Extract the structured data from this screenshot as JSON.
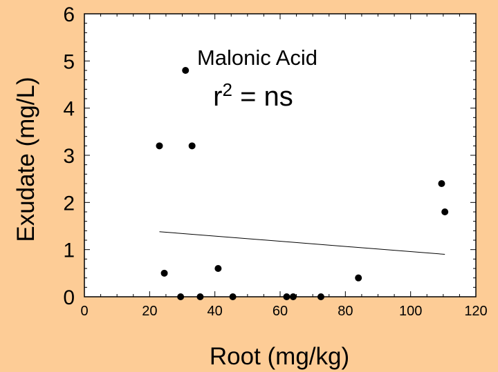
{
  "colors": {
    "background": "#FDCC96",
    "plot_background": "#FFFFFF",
    "points": "#000000",
    "line": "#000000"
  },
  "chart_data": {
    "type": "scatter",
    "title": "",
    "xlabel": "Root (mg/kg)",
    "ylabel": "Exudate (mg/L)",
    "xlim": [
      0,
      120
    ],
    "ylim": [
      0,
      6
    ],
    "x_ticks": [
      0,
      20,
      40,
      60,
      80,
      100,
      120
    ],
    "y_ticks": [
      0,
      1,
      2,
      3,
      4,
      5,
      6
    ],
    "grid": false,
    "legend": "none",
    "annotations": {
      "compound": "Malonic Acid",
      "r2_label": "r",
      "r2_sup": "2",
      "r2_value": " = ns"
    },
    "series": [
      {
        "points": [
          {
            "x": 23,
            "y": 3.2
          },
          {
            "x": 24.5,
            "y": 0.5
          },
          {
            "x": 29.5,
            "y": 0
          },
          {
            "x": 31,
            "y": 4.8
          },
          {
            "x": 33,
            "y": 3.2
          },
          {
            "x": 35.5,
            "y": 0
          },
          {
            "x": 41,
            "y": 0.6
          },
          {
            "x": 45.5,
            "y": 0
          },
          {
            "x": 62,
            "y": 0
          },
          {
            "x": 64,
            "y": 0
          },
          {
            "x": 72.5,
            "y": 0
          },
          {
            "x": 84,
            "y": 0.4
          },
          {
            "x": 109.5,
            "y": 2.4
          },
          {
            "x": 110.5,
            "y": 1.8
          }
        ]
      }
    ],
    "trendline": {
      "x": [
        23,
        110.5
      ],
      "y": [
        1.38,
        0.9
      ]
    }
  }
}
